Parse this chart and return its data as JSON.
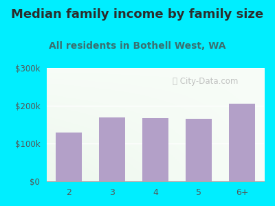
{
  "title": "Median family income by family size",
  "subtitle": "All residents in Bothell West, WA",
  "categories": [
    "2",
    "3",
    "4",
    "5",
    "6+"
  ],
  "values": [
    130000,
    170000,
    168000,
    165000,
    205000
  ],
  "bar_color": "#b3a0c8",
  "background_outer": "#00eeff",
  "background_plot_top": "#f5fef5",
  "background_plot_bottom": "#e8f8e8",
  "title_color": "#2c2c2c",
  "subtitle_color": "#3a7070",
  "tick_color": "#555555",
  "ylim": [
    0,
    300000
  ],
  "yticks": [
    0,
    100000,
    200000,
    300000
  ],
  "ytick_labels": [
    "$0",
    "$100k",
    "$200k",
    "$300k"
  ],
  "watermark": "City-Data.com",
  "title_fontsize": 13,
  "subtitle_fontsize": 10
}
